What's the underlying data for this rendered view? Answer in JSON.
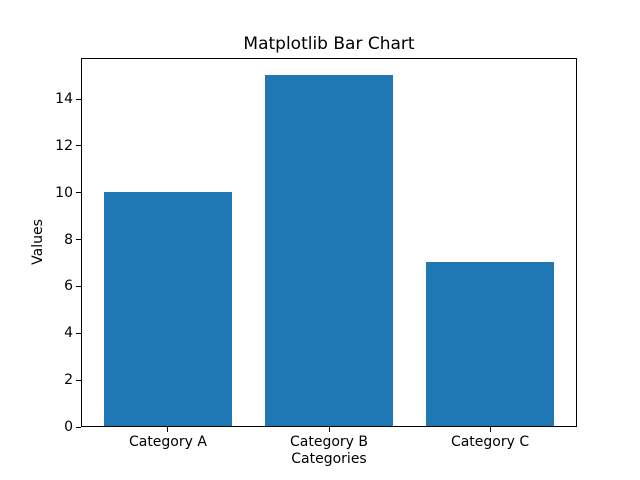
{
  "figure": {
    "background_color": "#ffffff",
    "spine_color": "#000000",
    "text_color": "#000000"
  },
  "chart_data": {
    "type": "bar",
    "title": "Matplotlib Bar Chart",
    "xlabel": "Categories",
    "ylabel": "Values",
    "categories": [
      "Category A",
      "Category B",
      "Category C"
    ],
    "values": [
      10,
      15,
      7
    ],
    "yticks": [
      0,
      2,
      4,
      6,
      8,
      10,
      12,
      14
    ],
    "ylim": [
      0,
      15.75
    ],
    "xlim": [
      -0.54,
      2.54
    ],
    "bar_width": 0.8,
    "bar_color": "#1f77b4",
    "grid": false,
    "legend_position": "none"
  }
}
